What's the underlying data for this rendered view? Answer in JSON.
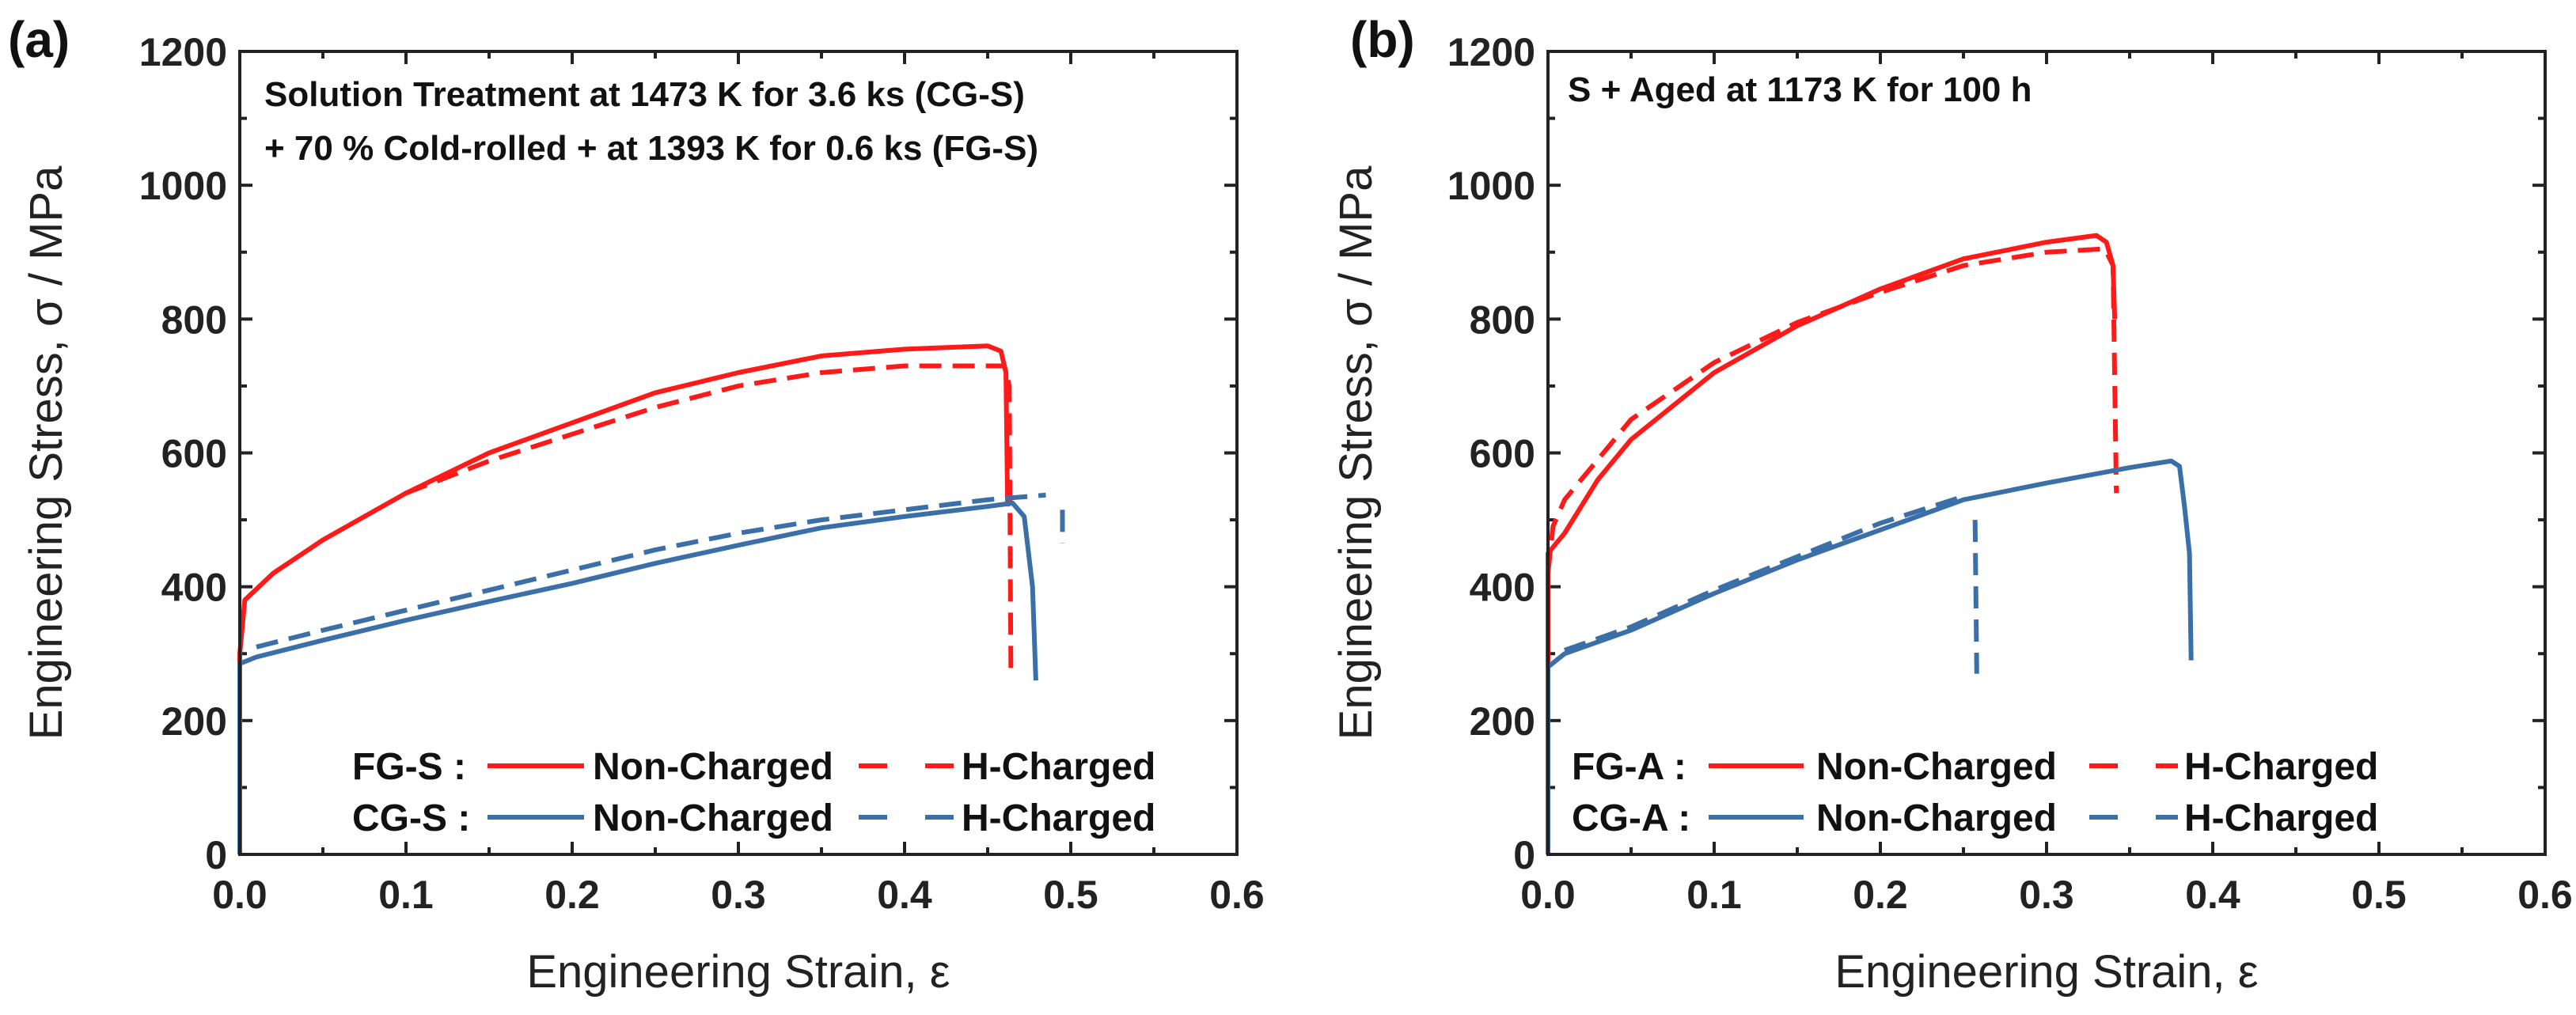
{
  "colors": {
    "fg": "#ff1a1a",
    "cg": "#3b6fa8",
    "axis": "#222222"
  },
  "chart_data": [
    {
      "type": "line",
      "panel_label": "(a)",
      "annotation": [
        "Solution Treatment at 1473 K for 3.6 ks (CG-S)",
        "+ 70 % Cold-rolled + at 1393 K for 0.6 ks (FG-S)"
      ],
      "xlabel": "Engineering Strain, ε",
      "ylabel": "Engineering Stress, σ / MPa",
      "xlim": [
        0,
        0.6
      ],
      "ylim": [
        0,
        1200
      ],
      "xticks": [
        "0.0",
        "0.1",
        "0.2",
        "0.3",
        "0.4",
        "0.5",
        "0.6"
      ],
      "yticks": [
        "0",
        "200",
        "400",
        "600",
        "800",
        "1000",
        "1200"
      ],
      "legend": [
        {
          "group": "FG-S :",
          "solid": "Non-Charged",
          "dashed": "H-Charged",
          "color": "fg"
        },
        {
          "group": "CG-S :",
          "solid": "Non-Charged",
          "dashed": "H-Charged",
          "color": "cg"
        }
      ],
      "series": [
        {
          "name": "FG-S Non-Charged",
          "color": "fg",
          "dash": false,
          "points": [
            [
              0,
              0
            ],
            [
              0,
              300
            ],
            [
              0.003,
              380
            ],
            [
              0.02,
              420
            ],
            [
              0.05,
              470
            ],
            [
              0.1,
              540
            ],
            [
              0.15,
              600
            ],
            [
              0.2,
              645
            ],
            [
              0.25,
              690
            ],
            [
              0.3,
              720
            ],
            [
              0.35,
              745
            ],
            [
              0.4,
              755
            ],
            [
              0.45,
              760
            ],
            [
              0.458,
              752
            ],
            [
              0.461,
              720
            ],
            [
              0.462,
              520
            ]
          ]
        },
        {
          "name": "FG-S H-Charged",
          "color": "fg",
          "dash": true,
          "points": [
            [
              0.1,
              540
            ],
            [
              0.15,
              588
            ],
            [
              0.2,
              628
            ],
            [
              0.25,
              668
            ],
            [
              0.3,
              700
            ],
            [
              0.35,
              720
            ],
            [
              0.4,
              730
            ],
            [
              0.46,
              730
            ],
            [
              0.463,
              700
            ],
            [
              0.464,
              265
            ]
          ]
        },
        {
          "name": "CG-S Non-Charged",
          "color": "cg",
          "dash": false,
          "points": [
            [
              0,
              0
            ],
            [
              0,
              285
            ],
            [
              0.01,
              295
            ],
            [
              0.05,
              320
            ],
            [
              0.1,
              350
            ],
            [
              0.15,
              378
            ],
            [
              0.2,
              405
            ],
            [
              0.25,
              435
            ],
            [
              0.3,
              462
            ],
            [
              0.35,
              488
            ],
            [
              0.4,
              505
            ],
            [
              0.45,
              520
            ],
            [
              0.465,
              525
            ],
            [
              0.472,
              505
            ],
            [
              0.477,
              400
            ],
            [
              0.479,
              260
            ]
          ]
        },
        {
          "name": "CG-S H-Charged",
          "color": "cg",
          "dash": true,
          "points": [
            [
              0.01,
              310
            ],
            [
              0.05,
              335
            ],
            [
              0.1,
              365
            ],
            [
              0.15,
              395
            ],
            [
              0.2,
              425
            ],
            [
              0.25,
              455
            ],
            [
              0.3,
              480
            ],
            [
              0.35,
              500
            ],
            [
              0.4,
              515
            ],
            [
              0.45,
              530
            ],
            [
              0.485,
              537
            ]
          ]
        },
        {
          "name": "CG-S H-Charged fracture",
          "color": "cg",
          "dash": true,
          "points": [
            [
              0.495,
              515
            ],
            [
              0.495,
              465
            ]
          ]
        }
      ]
    },
    {
      "type": "line",
      "panel_label": "(b)",
      "annotation": [
        "S + Aged at 1173 K for 100 h"
      ],
      "xlabel": "Engineering Strain, ε",
      "ylabel": "Engineering Stress, σ / MPa",
      "xlim": [
        0,
        0.6
      ],
      "ylim": [
        0,
        1200
      ],
      "xticks": [
        "0.0",
        "0.1",
        "0.2",
        "0.3",
        "0.4",
        "0.5",
        "0.6"
      ],
      "yticks": [
        "0",
        "200",
        "400",
        "600",
        "800",
        "1000",
        "1200"
      ],
      "legend": [
        {
          "group": "FG-A :",
          "solid": "Non-Charged",
          "dashed": "H-Charged",
          "color": "fg"
        },
        {
          "group": "CG-A :",
          "solid": "Non-Charged",
          "dashed": "H-Charged",
          "color": "cg"
        }
      ],
      "series": [
        {
          "name": "FG-A Non-Charged",
          "color": "fg",
          "dash": false,
          "points": [
            [
              0,
              280
            ],
            [
              0,
              450
            ],
            [
              0.01,
              480
            ],
            [
              0.03,
              560
            ],
            [
              0.05,
              620
            ],
            [
              0.1,
              720
            ],
            [
              0.15,
              790
            ],
            [
              0.2,
              845
            ],
            [
              0.25,
              890
            ],
            [
              0.3,
              915
            ],
            [
              0.33,
              925
            ],
            [
              0.336,
              915
            ],
            [
              0.34,
              880
            ],
            [
              0.341,
              800
            ]
          ]
        },
        {
          "name": "FG-A H-Charged",
          "color": "fg",
          "dash": true,
          "points": [
            [
              0,
              420
            ],
            [
              0.003,
              490
            ],
            [
              0.01,
              530
            ],
            [
              0.05,
              650
            ],
            [
              0.1,
              735
            ],
            [
              0.15,
              795
            ],
            [
              0.2,
              840
            ],
            [
              0.25,
              880
            ],
            [
              0.3,
              900
            ],
            [
              0.335,
              905
            ],
            [
              0.34,
              880
            ],
            [
              0.342,
              540
            ]
          ]
        },
        {
          "name": "CG-A Non-Charged",
          "color": "cg",
          "dash": false,
          "points": [
            [
              0,
              0
            ],
            [
              0,
              280
            ],
            [
              0.01,
              300
            ],
            [
              0.05,
              335
            ],
            [
              0.1,
              390
            ],
            [
              0.15,
              440
            ],
            [
              0.2,
              485
            ],
            [
              0.25,
              530
            ],
            [
              0.3,
              555
            ],
            [
              0.35,
              578
            ],
            [
              0.375,
              588
            ],
            [
              0.38,
              580
            ],
            [
              0.383,
              520
            ],
            [
              0.386,
              450
            ],
            [
              0.387,
              290
            ]
          ]
        },
        {
          "name": "CG-A H-Charged",
          "color": "cg",
          "dash": true,
          "points": [
            [
              0.01,
              305
            ],
            [
              0.05,
              340
            ],
            [
              0.1,
              395
            ],
            [
              0.15,
              445
            ],
            [
              0.2,
              495
            ],
            [
              0.25,
              535
            ]
          ]
        },
        {
          "name": "CG-A H-Charged fracture",
          "color": "cg",
          "dash": true,
          "points": [
            [
              0.257,
              500
            ],
            [
              0.258,
              270
            ]
          ]
        }
      ]
    }
  ]
}
